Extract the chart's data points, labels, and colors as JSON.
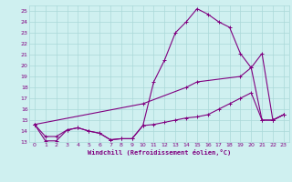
{
  "xlabel": "Windchill (Refroidissement éolien,°C)",
  "bg_color": "#cff0f0",
  "grid_color": "#aad8d8",
  "line_color": "#800080",
  "xlim": [
    -0.5,
    23.5
  ],
  "ylim": [
    13,
    25.5
  ],
  "xticks": [
    0,
    1,
    2,
    3,
    4,
    5,
    6,
    7,
    8,
    9,
    10,
    11,
    12,
    13,
    14,
    15,
    16,
    17,
    18,
    19,
    20,
    21,
    22,
    23
  ],
  "yticks": [
    13,
    14,
    15,
    16,
    17,
    18,
    19,
    20,
    21,
    22,
    23,
    24,
    25
  ],
  "series": [
    {
      "x": [
        0,
        1,
        2,
        3,
        4,
        5,
        6,
        7,
        8,
        9,
        10,
        11,
        12,
        13,
        14,
        15,
        16,
        17,
        18,
        19,
        20,
        21,
        22,
        23
      ],
      "y": [
        14.6,
        13.1,
        13.1,
        14.1,
        14.3,
        14.0,
        13.8,
        13.2,
        13.3,
        13.3,
        14.5,
        18.5,
        20.5,
        23.0,
        24.0,
        25.2,
        24.7,
        24.0,
        23.5,
        21.1,
        19.8,
        15.0,
        15.0,
        15.5
      ]
    },
    {
      "x": [
        0,
        10,
        14,
        15,
        19,
        20,
        21,
        22,
        23
      ],
      "y": [
        14.6,
        16.5,
        18.0,
        18.5,
        19.0,
        19.8,
        21.1,
        15.0,
        15.5
      ]
    },
    {
      "x": [
        0,
        1,
        2,
        3,
        4,
        5,
        6,
        7,
        8,
        9,
        10,
        11,
        12,
        13,
        14,
        15,
        16,
        17,
        18,
        19,
        20,
        21,
        22,
        23
      ],
      "y": [
        14.6,
        13.5,
        13.5,
        14.1,
        14.3,
        14.0,
        13.8,
        13.2,
        13.3,
        13.3,
        14.5,
        14.6,
        14.8,
        15.0,
        15.2,
        15.3,
        15.5,
        16.0,
        16.5,
        17.0,
        17.5,
        15.0,
        15.0,
        15.5
      ]
    },
    {
      "x": [
        6,
        7,
        8,
        9,
        10
      ],
      "y": [
        13.8,
        13.2,
        13.3,
        13.3,
        14.5
      ]
    }
  ],
  "marker": "+",
  "markersize": 3.5,
  "linewidth": 0.8
}
